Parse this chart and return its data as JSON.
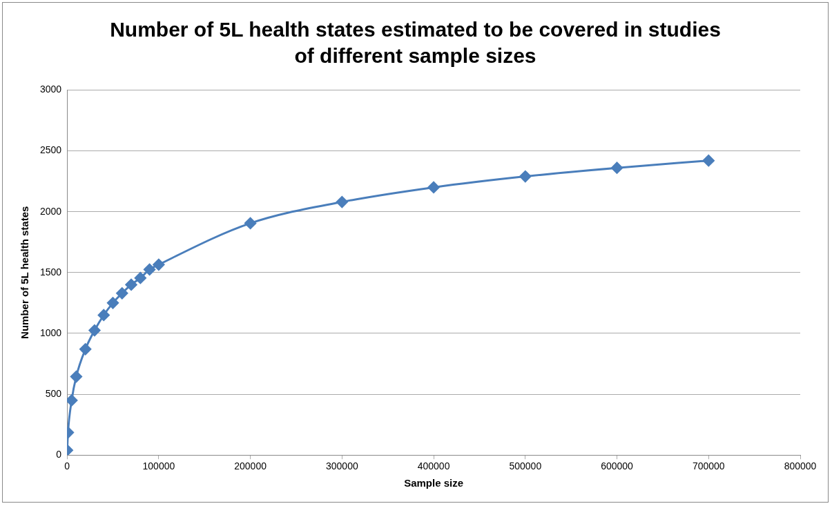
{
  "chart_data": {
    "type": "line",
    "title": "Number of 5L health states estimated to be covered in studies of different sample sizes",
    "xlabel": "Sample size",
    "ylabel": "Number of 5L health states",
    "x": [
      100,
      1000,
      5000,
      10000,
      20000,
      30000,
      40000,
      50000,
      60000,
      70000,
      80000,
      90000,
      100000,
      200000,
      300000,
      400000,
      500000,
      600000,
      700000
    ],
    "series": [
      {
        "color": "#4a7ebb",
        "values": [
          40,
          185,
          450,
          645,
          870,
          1025,
          1150,
          1250,
          1330,
          1400,
          1455,
          1525,
          1565,
          1905,
          2080,
          2200,
          2290,
          2360,
          2420
        ]
      }
    ],
    "xlim": [
      0,
      800000
    ],
    "xticks": [
      0,
      100000,
      200000,
      300000,
      400000,
      500000,
      600000,
      700000,
      800000
    ],
    "ylim": [
      0,
      3000
    ],
    "yticks": [
      0,
      500,
      1000,
      1500,
      2000,
      2500,
      3000
    ],
    "grid": "y",
    "legend": false,
    "marker": "diamond",
    "line_style": "solid"
  }
}
